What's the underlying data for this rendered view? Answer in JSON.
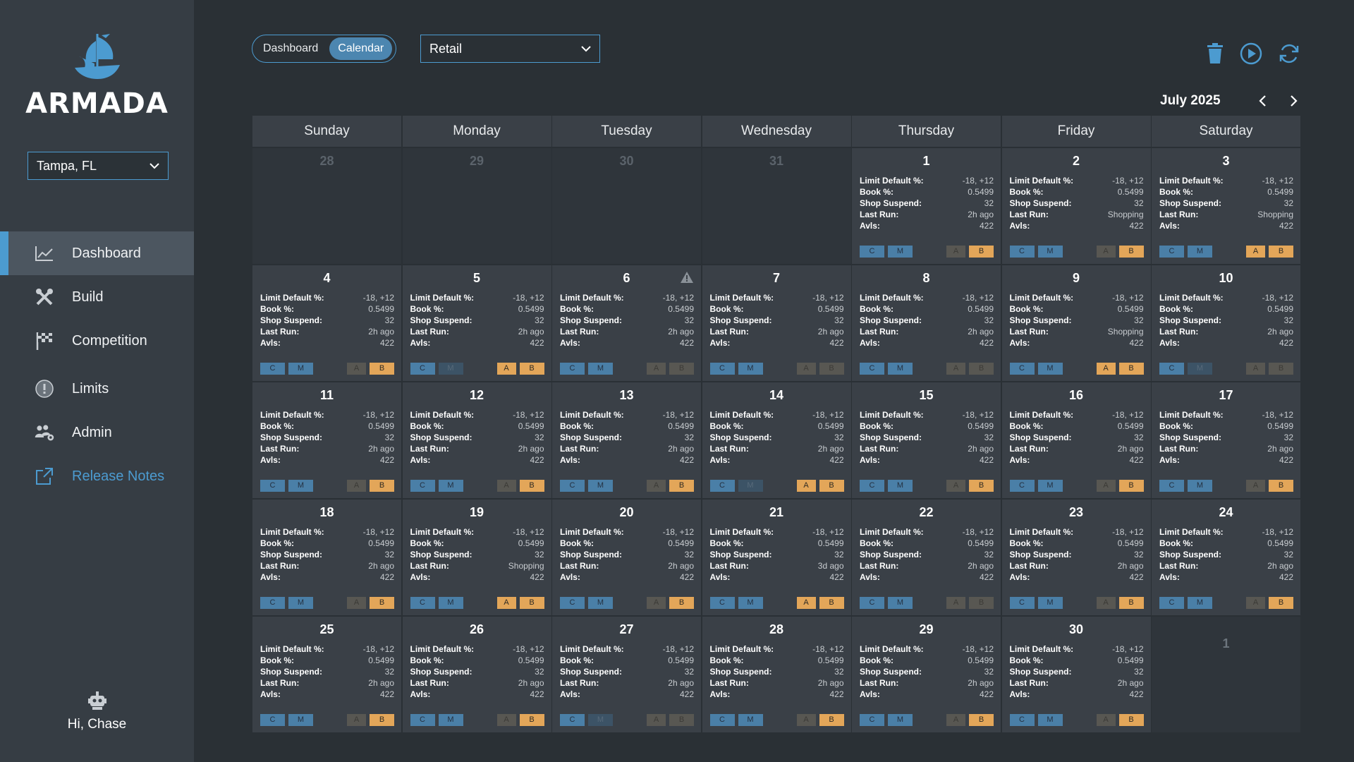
{
  "app": {
    "name": "ARMADA"
  },
  "location": {
    "selected": "Tampa, FL"
  },
  "nav": [
    {
      "label": "Dashboard",
      "icon": "line-chart-icon",
      "active": true
    },
    {
      "label": "Build",
      "icon": "tools-icon",
      "active": false
    },
    {
      "label": "Competition",
      "icon": "checkered-flag-icon",
      "active": false
    },
    {
      "label": "Limits",
      "icon": "alert-circle-icon",
      "active": false
    },
    {
      "label": "Admin",
      "icon": "users-gear-icon",
      "active": false
    },
    {
      "label": "Release Notes",
      "icon": "external-link-icon",
      "active": false
    }
  ],
  "user": {
    "greeting": "Hi, Chase"
  },
  "view_toggle": {
    "dashboard": "Dashboard",
    "calendar": "Calendar",
    "selected": "Calendar"
  },
  "segment": {
    "selected": "Retail"
  },
  "calendar": {
    "month_label": "July 2025",
    "weekdays": [
      "Sunday",
      "Monday",
      "Tuesday",
      "Wednesday",
      "Thursday",
      "Friday",
      "Saturday"
    ],
    "stat_labels": {
      "limit_default": "Limit Default %:",
      "book": "Book %:",
      "shop_suspend": "Shop Suspend:",
      "last_run": "Last Run:",
      "avls": "Avls:"
    },
    "button_labels": {
      "c": "C",
      "m": "M",
      "a": "A",
      "b": "B"
    },
    "leading_days": [
      28,
      29,
      30,
      31
    ],
    "trailing_days": [
      1
    ],
    "days": [
      {
        "day": 1,
        "limit_default": "-18, +12",
        "book": "0.5499",
        "shop_suspend": "32",
        "last_run": "2h ago",
        "avls": "422",
        "m_on": true,
        "a_on": false,
        "b_on": true,
        "warning": false
      },
      {
        "day": 2,
        "limit_default": "-18, +12",
        "book": "0.5499",
        "shop_suspend": "32",
        "last_run": "Shopping",
        "avls": "422",
        "m_on": true,
        "a_on": false,
        "b_on": true,
        "warning": false
      },
      {
        "day": 3,
        "limit_default": "-18, +12",
        "book": "0.5499",
        "shop_suspend": "32",
        "last_run": "Shopping",
        "avls": "422",
        "m_on": true,
        "a_on": true,
        "b_on": true,
        "warning": false
      },
      {
        "day": 4,
        "limit_default": "-18, +12",
        "book": "0.5499",
        "shop_suspend": "32",
        "last_run": "2h ago",
        "avls": "422",
        "m_on": true,
        "a_on": false,
        "b_on": true,
        "warning": false
      },
      {
        "day": 5,
        "limit_default": "-18, +12",
        "book": "0.5499",
        "shop_suspend": "32",
        "last_run": "2h ago",
        "avls": "422",
        "m_on": false,
        "a_on": true,
        "b_on": true,
        "warning": false
      },
      {
        "day": 6,
        "limit_default": "-18, +12",
        "book": "0.5499",
        "shop_suspend": "32",
        "last_run": "2h ago",
        "avls": "422",
        "m_on": true,
        "a_on": false,
        "b_on": false,
        "warning": true
      },
      {
        "day": 7,
        "limit_default": "-18, +12",
        "book": "0.5499",
        "shop_suspend": "32",
        "last_run": "2h ago",
        "avls": "422",
        "m_on": true,
        "a_on": false,
        "b_on": false,
        "warning": false
      },
      {
        "day": 8,
        "limit_default": "-18, +12",
        "book": "0.5499",
        "shop_suspend": "32",
        "last_run": "2h ago",
        "avls": "422",
        "m_on": true,
        "a_on": false,
        "b_on": false,
        "warning": false
      },
      {
        "day": 9,
        "limit_default": "-18, +12",
        "book": "0.5499",
        "shop_suspend": "32",
        "last_run": "Shopping",
        "avls": "422",
        "m_on": true,
        "a_on": true,
        "b_on": true,
        "warning": false
      },
      {
        "day": 10,
        "limit_default": "-18, +12",
        "book": "0.5499",
        "shop_suspend": "32",
        "last_run": "2h ago",
        "avls": "422",
        "m_on": false,
        "a_on": false,
        "b_on": false,
        "warning": false
      },
      {
        "day": 11,
        "limit_default": "-18, +12",
        "book": "0.5499",
        "shop_suspend": "32",
        "last_run": "2h ago",
        "avls": "422",
        "m_on": true,
        "a_on": false,
        "b_on": true,
        "warning": false
      },
      {
        "day": 12,
        "limit_default": "-18, +12",
        "book": "0.5499",
        "shop_suspend": "32",
        "last_run": "2h ago",
        "avls": "422",
        "m_on": true,
        "a_on": false,
        "b_on": true,
        "warning": false
      },
      {
        "day": 13,
        "limit_default": "-18, +12",
        "book": "0.5499",
        "shop_suspend": "32",
        "last_run": "2h ago",
        "avls": "422",
        "m_on": true,
        "a_on": false,
        "b_on": true,
        "warning": false
      },
      {
        "day": 14,
        "limit_default": "-18, +12",
        "book": "0.5499",
        "shop_suspend": "32",
        "last_run": "2h ago",
        "avls": "422",
        "m_on": false,
        "a_on": true,
        "b_on": true,
        "warning": false
      },
      {
        "day": 15,
        "limit_default": "-18, +12",
        "book": "0.5499",
        "shop_suspend": "32",
        "last_run": "2h ago",
        "avls": "422",
        "m_on": true,
        "a_on": false,
        "b_on": true,
        "warning": false
      },
      {
        "day": 16,
        "limit_default": "-18, +12",
        "book": "0.5499",
        "shop_suspend": "32",
        "last_run": "2h ago",
        "avls": "422",
        "m_on": true,
        "a_on": false,
        "b_on": true,
        "warning": false
      },
      {
        "day": 17,
        "limit_default": "-18, +12",
        "book": "0.5499",
        "shop_suspend": "32",
        "last_run": "2h ago",
        "avls": "422",
        "m_on": true,
        "a_on": false,
        "b_on": true,
        "warning": false
      },
      {
        "day": 18,
        "limit_default": "-18, +12",
        "book": "0.5499",
        "shop_suspend": "32",
        "last_run": "2h ago",
        "avls": "422",
        "m_on": true,
        "a_on": false,
        "b_on": true,
        "warning": false
      },
      {
        "day": 19,
        "limit_default": "-18, +12",
        "book": "0.5499",
        "shop_suspend": "32",
        "last_run": "Shopping",
        "avls": "422",
        "m_on": true,
        "a_on": true,
        "b_on": true,
        "warning": false
      },
      {
        "day": 20,
        "limit_default": "-18, +12",
        "book": "0.5499",
        "shop_suspend": "32",
        "last_run": "2h ago",
        "avls": "422",
        "m_on": true,
        "a_on": false,
        "b_on": true,
        "warning": false
      },
      {
        "day": 21,
        "limit_default": "-18, +12",
        "book": "0.5499",
        "shop_suspend": "32",
        "last_run": "3d ago",
        "avls": "422",
        "m_on": true,
        "a_on": true,
        "b_on": true,
        "warning": false
      },
      {
        "day": 22,
        "limit_default": "-18, +12",
        "book": "0.5499",
        "shop_suspend": "32",
        "last_run": "2h ago",
        "avls": "422",
        "m_on": true,
        "a_on": false,
        "b_on": false,
        "warning": false
      },
      {
        "day": 23,
        "limit_default": "-18, +12",
        "book": "0.5499",
        "shop_suspend": "32",
        "last_run": "2h ago",
        "avls": "422",
        "m_on": true,
        "a_on": false,
        "b_on": true,
        "warning": false
      },
      {
        "day": 24,
        "limit_default": "-18, +12",
        "book": "0.5499",
        "shop_suspend": "32",
        "last_run": "2h ago",
        "avls": "422",
        "m_on": true,
        "a_on": false,
        "b_on": true,
        "warning": false
      },
      {
        "day": 25,
        "limit_default": "-18, +12",
        "book": "0.5499",
        "shop_suspend": "32",
        "last_run": "2h ago",
        "avls": "422",
        "m_on": true,
        "a_on": false,
        "b_on": true,
        "warning": false
      },
      {
        "day": 26,
        "limit_default": "-18, +12",
        "book": "0.5499",
        "shop_suspend": "32",
        "last_run": "2h ago",
        "avls": "422",
        "m_on": true,
        "a_on": false,
        "b_on": true,
        "warning": false
      },
      {
        "day": 27,
        "limit_default": "-18, +12",
        "book": "0.5499",
        "shop_suspend": "32",
        "last_run": "2h ago",
        "avls": "422",
        "m_on": false,
        "a_on": false,
        "b_on": false,
        "warning": false
      },
      {
        "day": 28,
        "limit_default": "-18, +12",
        "book": "0.5499",
        "shop_suspend": "32",
        "last_run": "2h ago",
        "avls": "422",
        "m_on": true,
        "a_on": false,
        "b_on": true,
        "warning": false
      },
      {
        "day": 29,
        "limit_default": "-18, +12",
        "book": "0.5499",
        "shop_suspend": "32",
        "last_run": "2h ago",
        "avls": "422",
        "m_on": true,
        "a_on": false,
        "b_on": true,
        "warning": false
      },
      {
        "day": 30,
        "limit_default": "-18, +12",
        "book": "0.5499",
        "shop_suspend": "32",
        "last_run": "2h ago",
        "avls": "422",
        "m_on": true,
        "a_on": false,
        "b_on": true,
        "warning": false
      }
    ]
  },
  "colors": {
    "accent": "#4c9bd0",
    "amber": "#e3a659",
    "steel": "#4a7fa7"
  }
}
